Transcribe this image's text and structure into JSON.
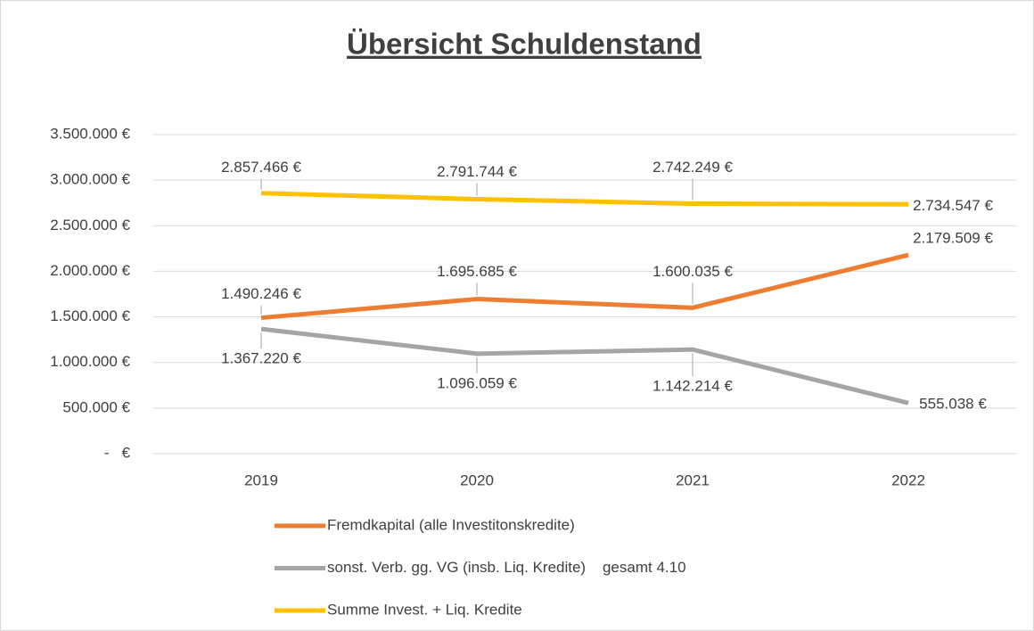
{
  "chart_data": {
    "type": "line",
    "title": "Übersicht Schuldenstand",
    "categories": [
      "2019",
      "2020",
      "2021",
      "2022"
    ],
    "series": [
      {
        "name": "Fremdkapital (alle Investitonskredite)",
        "color": "#ed7d31",
        "values": [
          1490246,
          1695685,
          1600035,
          2179509
        ],
        "value_labels": [
          "1.490.246 €",
          "1.695.685 €",
          "1.600.035 €",
          "2.179.509 €"
        ]
      },
      {
        "name": "sonst. Verb. gg. VG (insb. Liq. Kredite)    gesamt 4.10",
        "color": "#a5a5a5",
        "values": [
          1367220,
          1096059,
          1142214,
          555038
        ],
        "value_labels": [
          "1.367.220 €",
          "1.096.059 €",
          "1.142.214 €",
          "555.038 €"
        ]
      },
      {
        "name": "Summe Invest. + Liq. Kredite",
        "color": "#ffc000",
        "values": [
          2857466,
          2791744,
          2742249,
          2734547
        ],
        "value_labels": [
          "2.857.466 €",
          "2.791.744 €",
          "2.742.249 €",
          "2.734.547 €"
        ]
      }
    ],
    "ylim": [
      0,
      3500000
    ],
    "yticks": [
      {
        "value": 0,
        "label": "-   €"
      },
      {
        "value": 500000,
        "label": "500.000 €"
      },
      {
        "value": 1000000,
        "label": "1.000.000 €"
      },
      {
        "value": 1500000,
        "label": "1.500.000 €"
      },
      {
        "value": 2000000,
        "label": "2.000.000 €"
      },
      {
        "value": 2500000,
        "label": "2.500.000 €"
      },
      {
        "value": 3000000,
        "label": "3.000.000 €"
      },
      {
        "value": 3500000,
        "label": "3.500.000 €"
      }
    ],
    "grid": true,
    "legend": "bottom"
  }
}
